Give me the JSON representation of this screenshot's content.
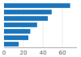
{
  "chart_data": {
    "type": "bar",
    "orientation": "horizontal",
    "categories": [
      null,
      null,
      null,
      null,
      null,
      null,
      null
    ],
    "values": [
      68,
      49,
      45,
      34,
      27,
      25,
      15
    ],
    "color": "#1a75bc",
    "xlim": [
      0,
      75
    ],
    "xticks": [
      0,
      20,
      40,
      60
    ],
    "grid": true,
    "tick_labels": "x"
  }
}
